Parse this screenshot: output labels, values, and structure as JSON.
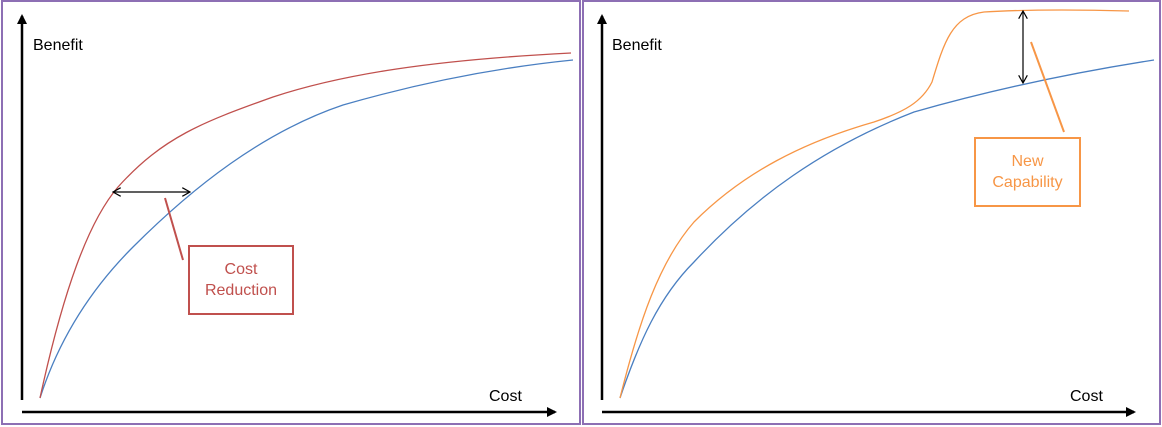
{
  "colors": {
    "frame": "#8d6fb4",
    "baseline_curve": "#4a7fc1",
    "cost_reduction": "#c0504d",
    "new_capability": "#f79646",
    "axis": "#000000"
  },
  "left_panel": {
    "y_label": "Benefit",
    "x_label": "Cost",
    "callout": {
      "line1": "Cost",
      "line2": "Reduction"
    }
  },
  "right_panel": {
    "y_label": "Benefit",
    "x_label": "Cost",
    "callout": {
      "line1": "New",
      "line2": "Capability"
    }
  }
}
